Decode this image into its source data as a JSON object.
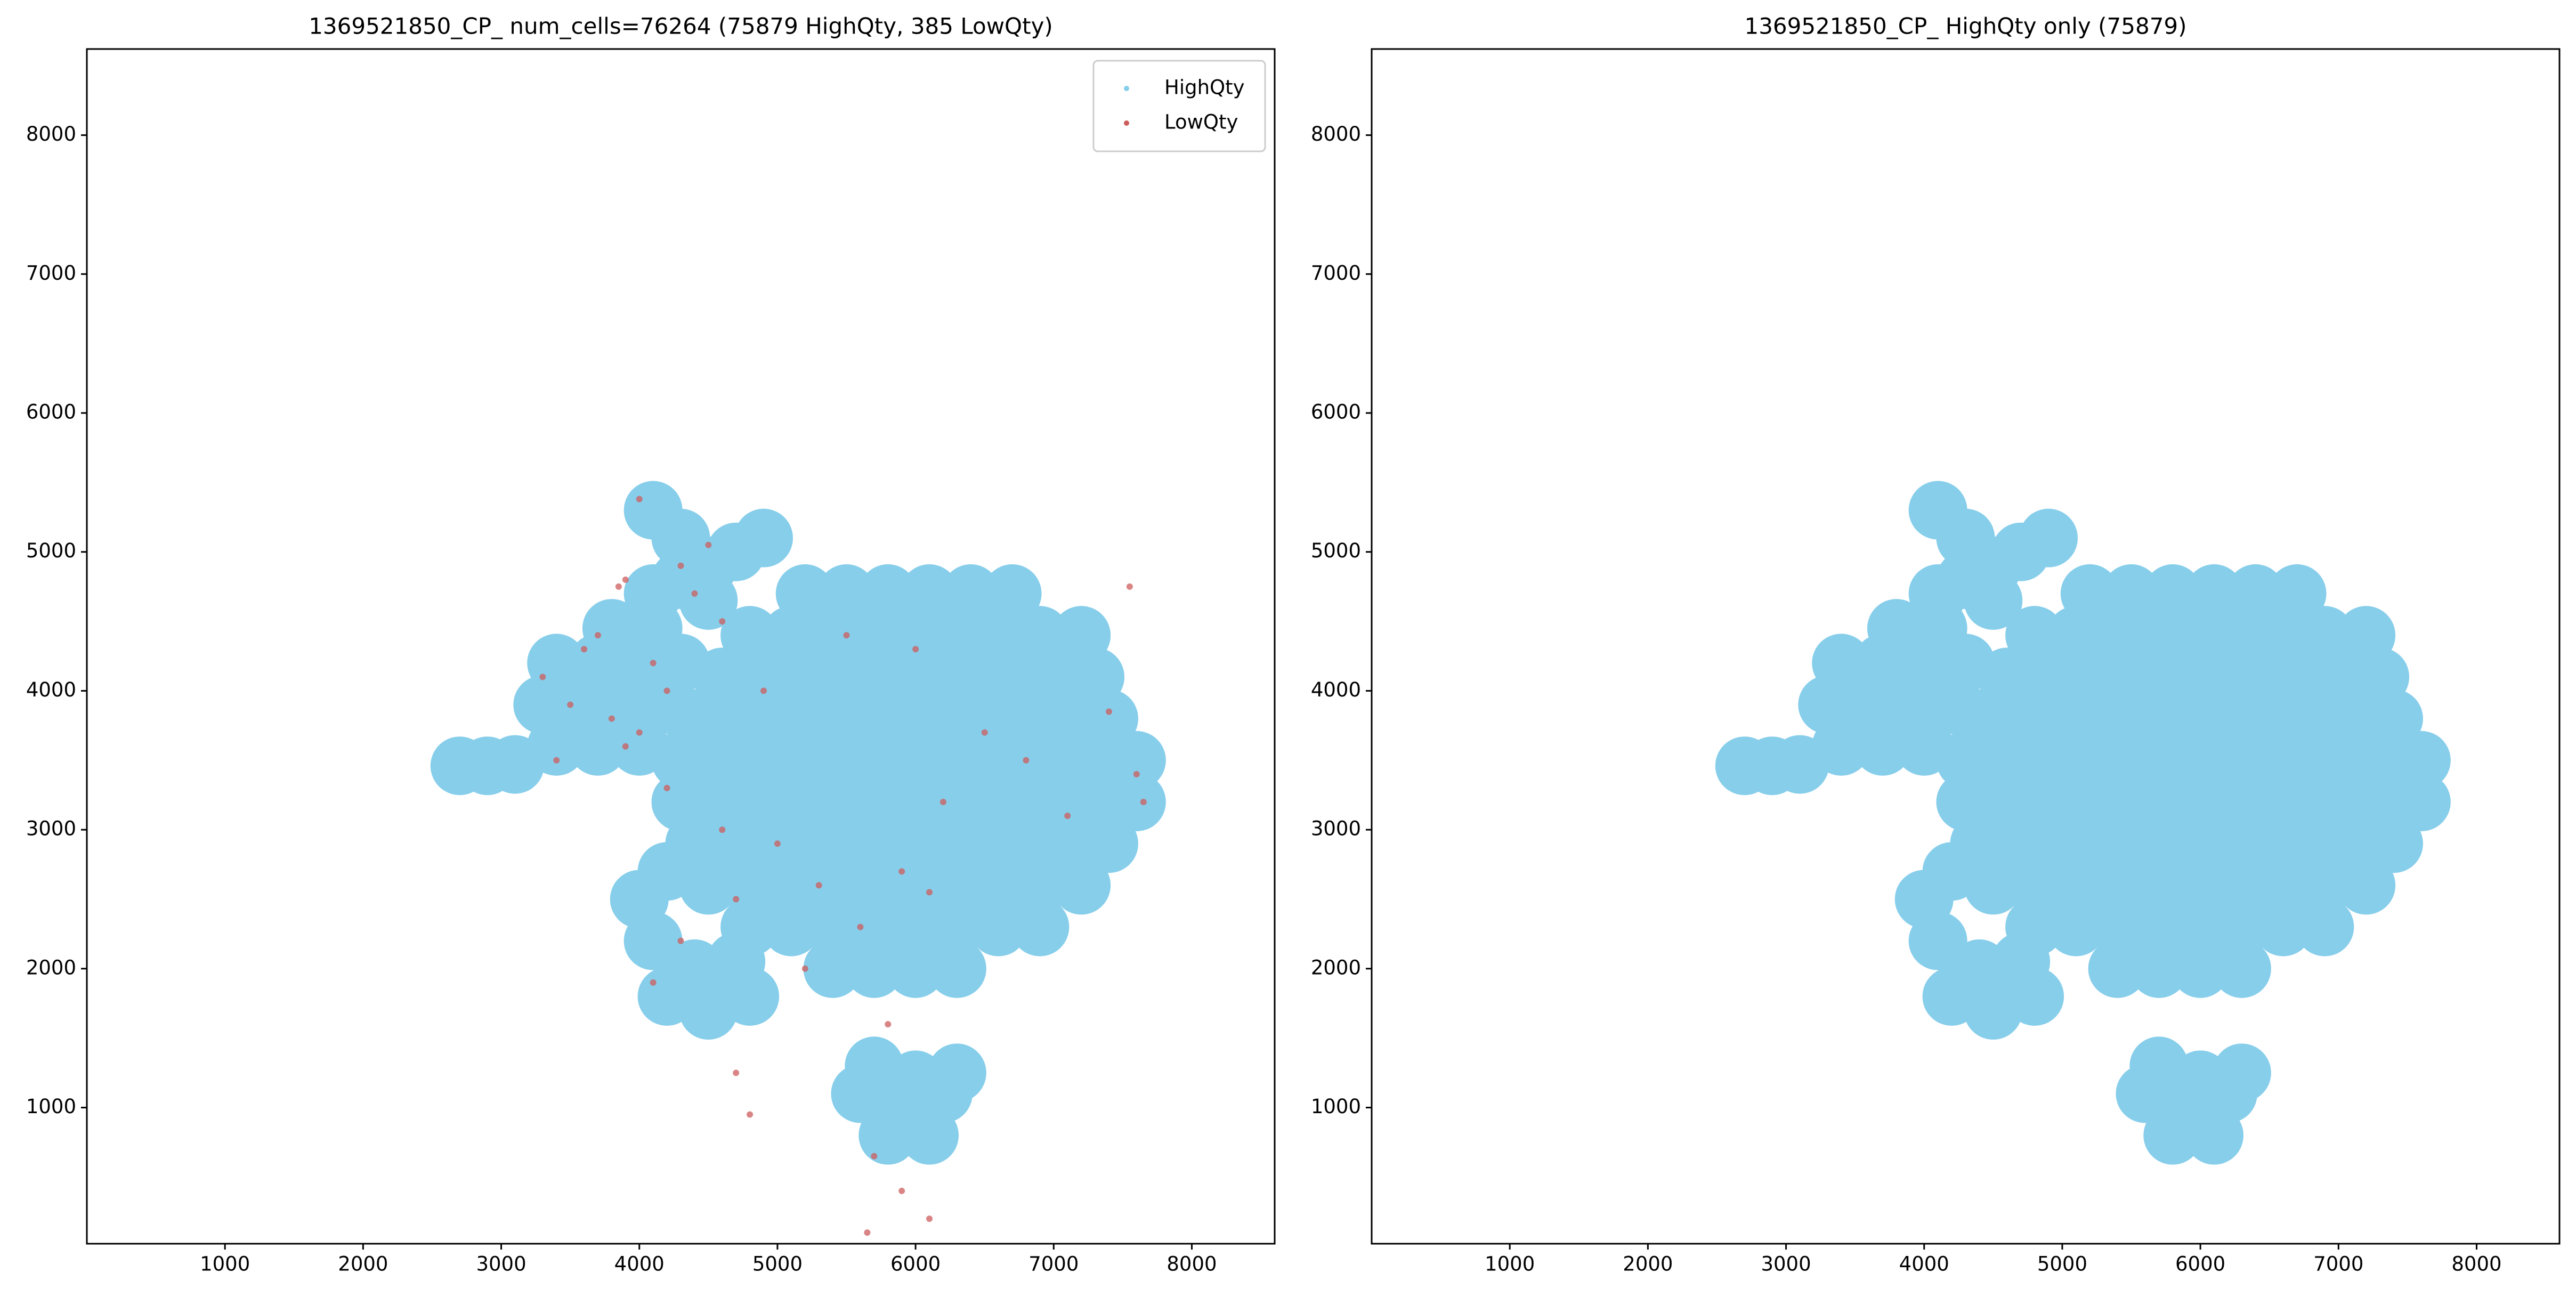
{
  "chart_data": [
    {
      "type": "scatter",
      "title": "1369521850_CP_ num_cells=76264 (75879 HighQty, 385 LowQty)",
      "xlim": [
        0,
        8600
      ],
      "ylim": [
        20,
        8620
      ],
      "xticks": [
        1000,
        2000,
        3000,
        4000,
        5000,
        6000,
        7000,
        8000
      ],
      "yticks": [
        1000,
        2000,
        3000,
        4000,
        5000,
        6000,
        7000,
        8000
      ],
      "legend": "upper right",
      "series": [
        {
          "name": "HighQty",
          "color": "#87ceeb",
          "x": [
            5400,
            5700,
            6000,
            6300,
            4800,
            5100,
            5400,
            5700,
            6000,
            6300,
            6600,
            6900,
            4500,
            4800,
            5100,
            5400,
            5700,
            6000,
            6300,
            6600,
            6900,
            7200,
            4400,
            4700,
            5000,
            5300,
            5600,
            5900,
            6200,
            6500,
            6800,
            7100,
            7400,
            4300,
            4600,
            4900,
            5200,
            5500,
            5800,
            6100,
            6400,
            6700,
            7000,
            7300,
            7600,
            4300,
            4600,
            4900,
            5200,
            5500,
            5800,
            6100,
            6400,
            6700,
            7000,
            7300,
            7600,
            4400,
            4700,
            5000,
            5300,
            5600,
            5900,
            6200,
            6500,
            6800,
            7100,
            7400,
            4600,
            4900,
            5200,
            5500,
            5800,
            6100,
            6400,
            6700,
            7000,
            7300,
            4800,
            5100,
            5400,
            5700,
            6000,
            6300,
            6600,
            6900,
            7200,
            5200,
            5500,
            5800,
            6100,
            6400,
            6700,
            3400,
            3700,
            4000,
            3300,
            3600,
            3900,
            4200,
            3400,
            3700,
            4000,
            4300,
            3800,
            4100,
            4100,
            4300,
            4500,
            4700,
            4900,
            4300,
            4100,
            4500,
            2700,
            2900,
            3100,
            4200,
            4500,
            4800,
            4400,
            4700,
            4100,
            4000,
            4200,
            5600,
            5900,
            6200,
            5800,
            6100,
            5700,
            6300,
            6000
          ],
          "y": [
            2000,
            2000,
            2000,
            2000,
            2300,
            2300,
            2300,
            2300,
            2300,
            2300,
            2300,
            2300,
            2600,
            2600,
            2600,
            2600,
            2600,
            2600,
            2600,
            2600,
            2600,
            2600,
            2900,
            2900,
            2900,
            2900,
            2900,
            2900,
            2900,
            2900,
            2900,
            2900,
            2900,
            3200,
            3200,
            3200,
            3200,
            3200,
            3200,
            3200,
            3200,
            3200,
            3200,
            3200,
            3200,
            3500,
            3500,
            3500,
            3500,
            3500,
            3500,
            3500,
            3500,
            3500,
            3500,
            3500,
            3500,
            3800,
            3800,
            3800,
            3800,
            3800,
            3800,
            3800,
            3800,
            3800,
            3800,
            3800,
            4100,
            4100,
            4100,
            4100,
            4100,
            4100,
            4100,
            4100,
            4100,
            4100,
            4400,
            4400,
            4400,
            4400,
            4400,
            4400,
            4400,
            4400,
            4400,
            4700,
            4700,
            4700,
            4700,
            4700,
            4700,
            3600,
            3600,
            3600,
            3900,
            3900,
            3900,
            3900,
            4200,
            4200,
            4200,
            4200,
            4450,
            4450,
            4700,
            4800,
            4900,
            5000,
            5100,
            5100,
            5300,
            4650,
            3460,
            3460,
            3470,
            1800,
            1700,
            1800,
            2000,
            2050,
            2200,
            2500,
            2700,
            1100,
            1000,
            1100,
            800,
            800,
            1300,
            1250,
            1200
          ]
        },
        {
          "name": "LowQty",
          "color": "#cd5c5c",
          "x": [
            3300,
            3500,
            3700,
            3900,
            4100,
            3400,
            3600,
            3800,
            4000,
            4200,
            3900,
            4300,
            4500,
            4400,
            4600,
            4200,
            3850,
            4000,
            4700,
            5000,
            5300,
            5600,
            5900,
            6200,
            6500,
            6800,
            7100,
            7400,
            7600,
            7550,
            7650,
            6000,
            5500,
            4900,
            4600,
            4300,
            4100,
            5200,
            5800,
            6100,
            4700,
            4800,
            5700,
            5900,
            6100,
            5650
          ],
          "y": [
            4100,
            3900,
            4400,
            3600,
            4200,
            3500,
            4300,
            3800,
            3700,
            4000,
            4800,
            4900,
            5050,
            4700,
            4500,
            3300,
            4750,
            5380,
            2500,
            2900,
            2600,
            2300,
            2700,
            3200,
            3700,
            3500,
            3100,
            3850,
            3400,
            4750,
            3200,
            4300,
            4400,
            4000,
            3000,
            2200,
            1900,
            2000,
            1600,
            2550,
            1250,
            950,
            650,
            400,
            200,
            100
          ]
        }
      ]
    },
    {
      "type": "scatter",
      "title": "1369521850_CP_ HighQty only (75879)",
      "xlim": [
        0,
        8600
      ],
      "ylim": [
        20,
        8620
      ],
      "xticks": [
        1000,
        2000,
        3000,
        4000,
        5000,
        6000,
        7000,
        8000
      ],
      "yticks": [
        1000,
        2000,
        3000,
        4000,
        5000,
        6000,
        7000,
        8000
      ],
      "series": [
        {
          "color": "#87ceeb",
          "x": [
            5400,
            5700,
            6000,
            6300,
            4800,
            5100,
            5400,
            5700,
            6000,
            6300,
            6600,
            6900,
            4500,
            4800,
            5100,
            5400,
            5700,
            6000,
            6300,
            6600,
            6900,
            7200,
            4400,
            4700,
            5000,
            5300,
            5600,
            5900,
            6200,
            6500,
            6800,
            7100,
            7400,
            4300,
            4600,
            4900,
            5200,
            5500,
            5800,
            6100,
            6400,
            6700,
            7000,
            7300,
            7600,
            4300,
            4600,
            4900,
            5200,
            5500,
            5800,
            6100,
            6400,
            6700,
            7000,
            7300,
            7600,
            4400,
            4700,
            5000,
            5300,
            5600,
            5900,
            6200,
            6500,
            6800,
            7100,
            7400,
            4600,
            4900,
            5200,
            5500,
            5800,
            6100,
            6400,
            6700,
            7000,
            7300,
            4800,
            5100,
            5400,
            5700,
            6000,
            6300,
            6600,
            6900,
            7200,
            5200,
            5500,
            5800,
            6100,
            6400,
            6700,
            3400,
            3700,
            4000,
            3300,
            3600,
            3900,
            4200,
            3400,
            3700,
            4000,
            4300,
            3800,
            4100,
            4100,
            4300,
            4500,
            4700,
            4900,
            4300,
            4100,
            4500,
            2700,
            2900,
            3100,
            4200,
            4500,
            4800,
            4400,
            4700,
            4100,
            4000,
            4200,
            5600,
            5900,
            6200,
            5800,
            6100,
            5700,
            6300,
            6000
          ],
          "y": [
            2000,
            2000,
            2000,
            2000,
            2300,
            2300,
            2300,
            2300,
            2300,
            2300,
            2300,
            2300,
            2600,
            2600,
            2600,
            2600,
            2600,
            2600,
            2600,
            2600,
            2600,
            2600,
            2900,
            2900,
            2900,
            2900,
            2900,
            2900,
            2900,
            2900,
            2900,
            2900,
            2900,
            3200,
            3200,
            3200,
            3200,
            3200,
            3200,
            3200,
            3200,
            3200,
            3200,
            3200,
            3200,
            3500,
            3500,
            3500,
            3500,
            3500,
            3500,
            3500,
            3500,
            3500,
            3500,
            3500,
            3500,
            3800,
            3800,
            3800,
            3800,
            3800,
            3800,
            3800,
            3800,
            3800,
            3800,
            3800,
            4100,
            4100,
            4100,
            4100,
            4100,
            4100,
            4100,
            4100,
            4100,
            4100,
            4400,
            4400,
            4400,
            4400,
            4400,
            4400,
            4400,
            4400,
            4400,
            4700,
            4700,
            4700,
            4700,
            4700,
            4700,
            3600,
            3600,
            3600,
            3900,
            3900,
            3900,
            3900,
            4200,
            4200,
            4200,
            4200,
            4450,
            4450,
            4700,
            4800,
            4900,
            5000,
            5100,
            5100,
            5300,
            4650,
            3460,
            3460,
            3470,
            1800,
            1700,
            1800,
            2000,
            2050,
            2200,
            2500,
            2700,
            1100,
            1000,
            1100,
            800,
            800,
            1300,
            1250,
            1200
          ]
        }
      ]
    }
  ]
}
